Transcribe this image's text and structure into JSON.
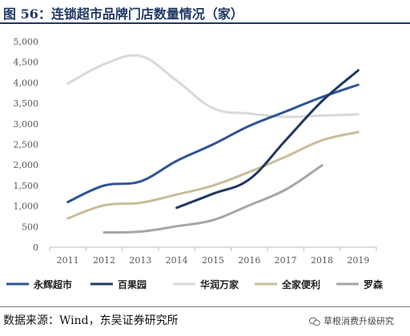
{
  "title": "图 56：连锁超市品牌门店数量情况（家）",
  "source": "数据来源：Wind，东吴证券研究所",
  "watermark": "草根消费升级研究",
  "colors": {
    "title": "#1f3864",
    "axis": "#bfbfbf",
    "tick_label": "#595959"
  },
  "chart_data": {
    "type": "line",
    "title": "",
    "xlabel": "",
    "ylabel": "",
    "x": [
      "2011",
      "2012",
      "2013",
      "2014",
      "2015",
      "2016",
      "2017",
      "2018",
      "2019"
    ],
    "ylim": [
      0,
      5000
    ],
    "yticks": [
      "0",
      "500",
      "1,000",
      "1,500",
      "2,000",
      "2,500",
      "3,000",
      "3,500",
      "4,000",
      "4,500",
      "5,000"
    ],
    "ytick_values": [
      0,
      500,
      1000,
      1500,
      2000,
      2500,
      3000,
      3500,
      4000,
      4500,
      5000
    ],
    "grid": false,
    "legend_position": "bottom",
    "series": [
      {
        "name": "永辉超市",
        "color": "#2e5597",
        "values": [
          1100,
          1500,
          1600,
          2100,
          2500,
          2950,
          3300,
          3650,
          3950
        ]
      },
      {
        "name": "百果园",
        "color": "#1f3864",
        "values": [
          null,
          null,
          null,
          960,
          1300,
          1650,
          2600,
          3550,
          4300
        ]
      },
      {
        "name": "华润万家",
        "color": "#d9d9d9",
        "values": [
          3980,
          4450,
          4650,
          4050,
          3380,
          3250,
          3170,
          3200,
          3230
        ]
      },
      {
        "name": "全家便利",
        "color": "#c9be98",
        "values": [
          700,
          1020,
          1080,
          1280,
          1500,
          1830,
          2200,
          2600,
          2800
        ]
      },
      {
        "name": "罗森",
        "color": "#a6a6a6",
        "values": [
          null,
          360,
          380,
          510,
          660,
          1020,
          1400,
          1990,
          null
        ]
      }
    ]
  }
}
